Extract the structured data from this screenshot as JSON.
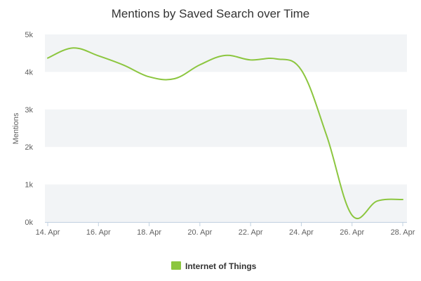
{
  "chart_data": {
    "type": "line",
    "title": "Mentions by Saved Search over Time",
    "xlabel": "",
    "ylabel": "Mentions",
    "x": [
      "14 Apr",
      "15 Apr",
      "16 Apr",
      "17 Apr",
      "18 Apr",
      "19 Apr",
      "20 Apr",
      "21 Apr",
      "22 Apr",
      "23 Apr",
      "24 Apr",
      "25 Apr",
      "26 Apr",
      "27 Apr",
      "28 Apr"
    ],
    "x_tick_labels": [
      "14. Apr",
      "16. Apr",
      "18. Apr",
      "20. Apr",
      "22. Apr",
      "24. Apr",
      "26. Apr",
      "28. Apr"
    ],
    "y_tick_labels": [
      "0k",
      "1k",
      "2k",
      "3k",
      "4k",
      "5k"
    ],
    "ylim": [
      0,
      5000
    ],
    "grid": "alternating horizontal bands",
    "legend_position": "bottom-center",
    "series": [
      {
        "name": "Internet of Things",
        "color": "#8cc63f",
        "values": [
          4370,
          4640,
          4430,
          4180,
          3870,
          3820,
          4190,
          4440,
          4320,
          4350,
          4050,
          2300,
          180,
          560,
          600
        ]
      }
    ]
  },
  "colors": {
    "band": "#f2f4f6",
    "axis": "#c0d0e0",
    "text": "#606060"
  }
}
